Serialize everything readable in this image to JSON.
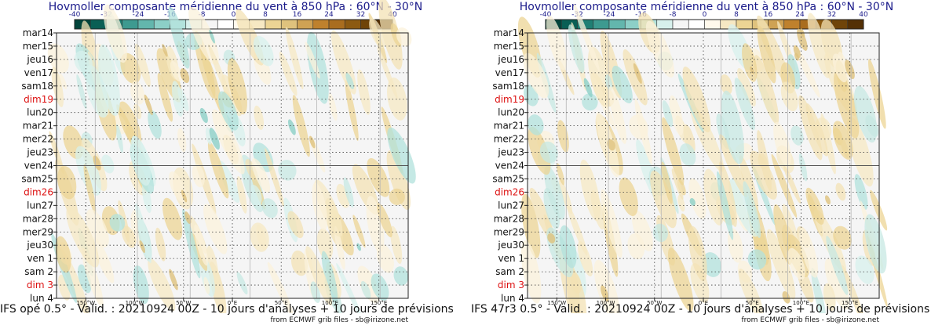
{
  "colorbar": {
    "ticks": [
      "-40",
      "-32",
      "-24",
      "-16",
      "-8",
      "0",
      "8",
      "16",
      "24",
      "32",
      "40"
    ],
    "colors": [
      "#01443b",
      "#0a5f55",
      "#1f7f74",
      "#3d9a90",
      "#63b6ad",
      "#8ccfc7",
      "#b2e2dc",
      "#d7f0ec",
      "#f5f5f5",
      "#ffffff",
      "#fff9ec",
      "#f6e8c3",
      "#ecd494",
      "#dfc27d",
      "#cfa254",
      "#bf812d",
      "#a96d1f",
      "#8c5a12",
      "#6f4409",
      "#543005"
    ]
  },
  "palette": {
    "weekend_color": "#dd1111",
    "text_color": "#111111"
  },
  "panels": [
    {
      "title": "Hovmoller composante méridienne du vent à 850 hPa : 60°N - 30°N",
      "footer": "IFS opé 0.5° - Valid. : 20210924 00Z - 10 jours d'analyses + 10 jours de prévisions",
      "source": "from ECMWF grib files - sb@irizone.net"
    },
    {
      "title": "Hovmoller composante méridienne du vent à 850 hPa : 60°N - 30°N",
      "footer": "IFS 47r3 0.5° - Valid. : 20210924 00Z - 10 jours d'analyses + 10 jours de prévisions",
      "source": "from ECMWF grib files - sb@irizone.net"
    }
  ],
  "chart_data": [
    {
      "type": "heatmap",
      "title": "Hovmoller composante méridienne du vent à 850 hPa : 60°N - 30°N",
      "variable": "meridional wind at 850 hPa, averaged 60°N - 30°N",
      "model": "IFS opé 0.5°",
      "validity": "20210924 00Z",
      "y_categories": [
        "mar14",
        "mer15",
        "jeu16",
        "ven17",
        "sam18",
        "dim19",
        "lun20",
        "mar21",
        "mer22",
        "jeu23",
        "ven24",
        "sam25",
        "dim26",
        "lun27",
        "mar28",
        "mer29",
        "jeu30",
        "ven 1",
        "sam 2",
        "dim 3",
        "lun 4"
      ],
      "weekend_labels": [
        "dim19",
        "dim26",
        "dim 3"
      ],
      "analysis_forecast_split": "ven24",
      "x_ticks": [
        "150°W",
        "100°W",
        "50°W",
        "0°E",
        "50°E",
        "100°E",
        "150°E"
      ],
      "x_tick_values": [
        -150,
        -100,
        -50,
        0,
        50,
        100,
        150
      ],
      "xlim": [
        -180,
        180
      ],
      "color_scale": {
        "min": -40,
        "max": 40,
        "step": 4
      }
    },
    {
      "type": "heatmap",
      "title": "Hovmoller composante méridienne du vent à 850 hPa : 60°N - 30°N",
      "variable": "meridional wind at 850 hPa, averaged 60°N - 30°N",
      "model": "IFS 47r3 0.5°",
      "validity": "20210924 00Z",
      "y_categories": [
        "mar14",
        "mer15",
        "jeu16",
        "ven17",
        "sam18",
        "dim19",
        "lun20",
        "mar21",
        "mer22",
        "jeu23",
        "ven24",
        "sam25",
        "dim26",
        "lun27",
        "mar28",
        "mer29",
        "jeu30",
        "ven 1",
        "sam 2",
        "dim 3",
        "lun 4"
      ],
      "weekend_labels": [
        "dim19",
        "dim26",
        "dim 3"
      ],
      "analysis_forecast_split": "ven24",
      "x_ticks": [
        "150°W",
        "100°W",
        "50°W",
        "0°E",
        "50°E",
        "100°E",
        "150°E"
      ],
      "x_tick_values": [
        -150,
        -100,
        -50,
        0,
        50,
        100,
        150
      ],
      "xlim": [
        -180,
        180
      ],
      "color_scale": {
        "min": -40,
        "max": 40,
        "step": 4
      }
    }
  ]
}
